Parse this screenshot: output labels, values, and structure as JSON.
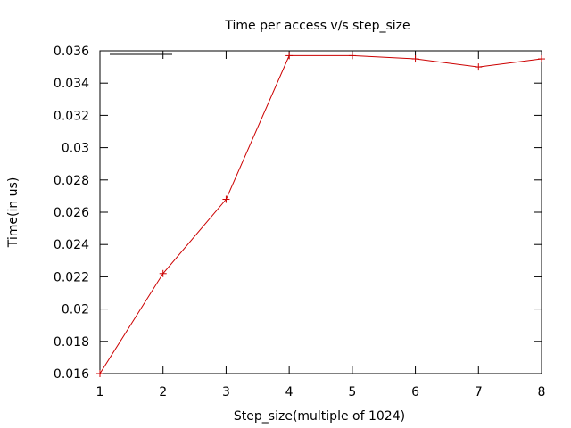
{
  "chart_data": {
    "type": "line",
    "title": "Time per access v/s step_size",
    "xlabel": "Step_size(multiple of 1024)",
    "ylabel": "Time(in us)",
    "xlim": [
      1,
      8
    ],
    "ylim": [
      0.016,
      0.036
    ],
    "x_ticks": [
      "1",
      "2",
      "3",
      "4",
      "5",
      "6",
      "7",
      "8"
    ],
    "y_ticks": [
      "0.016",
      "0.018",
      "0.02",
      "0.022",
      "0.024",
      "0.026",
      "0.028",
      "0.03",
      "0.032",
      "0.034",
      "0.036"
    ],
    "grid": false,
    "legend": "top-left",
    "series": [
      {
        "name": "",
        "color": "#cc0000",
        "marker": "plus",
        "x": [
          1,
          2,
          3,
          4,
          5,
          6,
          7,
          8
        ],
        "y": [
          0.016,
          0.0222,
          0.0268,
          0.0357,
          0.0357,
          0.0355,
          0.035,
          0.0355
        ]
      }
    ],
    "legend_sample_color": "#000000"
  }
}
